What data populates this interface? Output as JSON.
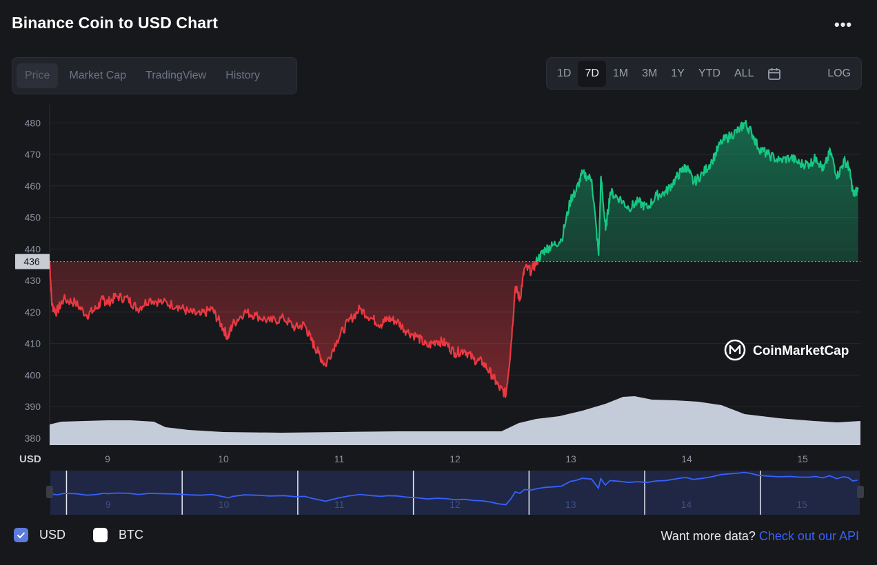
{
  "title": "Binance Coin to USD Chart",
  "more_menu": "•••",
  "tabs": [
    "Price",
    "Market Cap",
    "TradingView",
    "History"
  ],
  "active_tab": "Price",
  "ranges": [
    "1D",
    "7D",
    "1M",
    "3M",
    "1Y",
    "YTD",
    "ALL"
  ],
  "active_range": "7D",
  "calendar_icon": "calendar-icon",
  "log_label": "LOG",
  "watermark": "CoinMarketCap",
  "legend": [
    {
      "label": "USD",
      "checked": true
    },
    {
      "label": "BTC",
      "checked": false
    }
  ],
  "footer": {
    "prompt": "Want more data?",
    "link": "Check out our API"
  },
  "colors": {
    "up": "#16c784",
    "down": "#ea3943",
    "volume": "#cfd6e4",
    "navigator_line": "#3861fb",
    "link": "#3861fb"
  },
  "chart_data": {
    "type": "line",
    "title": "Binance Coin to USD Chart",
    "xlabel": "",
    "ylabel": "USD",
    "x_tick_labels": [
      "9",
      "10",
      "11",
      "12",
      "13",
      "14",
      "15"
    ],
    "y_tick_labels": [
      "380",
      "390",
      "400",
      "410",
      "420",
      "430",
      "440",
      "450",
      "460",
      "470",
      "480"
    ],
    "ylim": [
      378,
      484
    ],
    "xlim": [
      8.5,
      15.5
    ],
    "reference_price": 436,
    "reference_label": "436",
    "grid": true,
    "legend_position": "bottom-left",
    "series": [
      {
        "name": "USD",
        "x": [
          8.5,
          8.52,
          8.56,
          8.62,
          8.72,
          8.82,
          8.9,
          8.96,
          9.0,
          9.08,
          9.18,
          9.26,
          9.36,
          9.48,
          9.6,
          9.7,
          9.8,
          9.9,
          9.98,
          10.04,
          10.08,
          10.18,
          10.28,
          10.4,
          10.52,
          10.62,
          10.7,
          10.76,
          10.82,
          10.88,
          10.98,
          11.08,
          11.18,
          11.28,
          11.36,
          11.42,
          11.5,
          11.58,
          11.68,
          11.76,
          11.84,
          11.92,
          12.0,
          12.08,
          12.16,
          12.24,
          12.32,
          12.38,
          12.44,
          12.48,
          12.52,
          12.56,
          12.6,
          12.66,
          12.72,
          12.78,
          12.84,
          12.92,
          13.0,
          13.04,
          13.1,
          13.18,
          13.24,
          13.26,
          13.3,
          13.34,
          13.42,
          13.5,
          13.58,
          13.66,
          13.74,
          13.82,
          13.9,
          13.96,
          14.0,
          14.06,
          14.14,
          14.22,
          14.3,
          14.38,
          14.46,
          14.5,
          14.56,
          14.62,
          14.7,
          14.8,
          14.9,
          14.98,
          15.06,
          15.12,
          15.18,
          15.24,
          15.3,
          15.36,
          15.4,
          15.44,
          15.48
        ],
        "y": [
          436,
          422,
          420,
          424,
          423,
          419,
          421,
          424,
          423,
          425,
          424,
          421,
          424,
          423,
          422,
          420,
          419,
          421,
          416,
          412,
          416,
          420,
          419,
          417,
          418,
          415,
          416,
          411,
          407,
          403,
          411,
          417,
          421,
          418,
          416,
          418,
          417,
          414,
          412,
          409,
          411,
          410,
          407,
          408,
          405,
          404,
          400,
          396,
          394,
          408,
          428,
          424,
          434,
          433,
          437,
          440,
          441,
          443,
          456,
          458,
          464,
          462,
          438,
          463,
          446,
          458,
          456,
          453,
          455,
          453,
          457,
          458,
          462,
          465,
          466,
          461,
          464,
          468,
          474,
          476,
          478,
          480,
          477,
          472,
          470,
          468,
          469,
          467,
          467,
          469,
          465,
          471,
          463,
          468,
          466,
          457,
          459
        ]
      },
      {
        "name": "Volume",
        "x": [
          8.5,
          8.6,
          8.8,
          9.0,
          9.2,
          9.4,
          9.5,
          9.7,
          10.0,
          10.5,
          11.0,
          11.5,
          12.0,
          12.4,
          12.55,
          12.7,
          12.9,
          13.1,
          13.3,
          13.45,
          13.55,
          13.7,
          13.9,
          14.1,
          14.3,
          14.5,
          14.8,
          15.1,
          15.3,
          15.5
        ],
        "relative_height": [
          0.3,
          0.34,
          0.35,
          0.36,
          0.36,
          0.34,
          0.26,
          0.22,
          0.19,
          0.18,
          0.19,
          0.2,
          0.2,
          0.2,
          0.32,
          0.38,
          0.42,
          0.5,
          0.6,
          0.7,
          0.71,
          0.66,
          0.65,
          0.63,
          0.58,
          0.45,
          0.39,
          0.35,
          0.33,
          0.35
        ]
      }
    ]
  },
  "navigator": {
    "x_tick_labels": [
      "9",
      "10",
      "11",
      "12",
      "13",
      "14",
      "15"
    ]
  }
}
